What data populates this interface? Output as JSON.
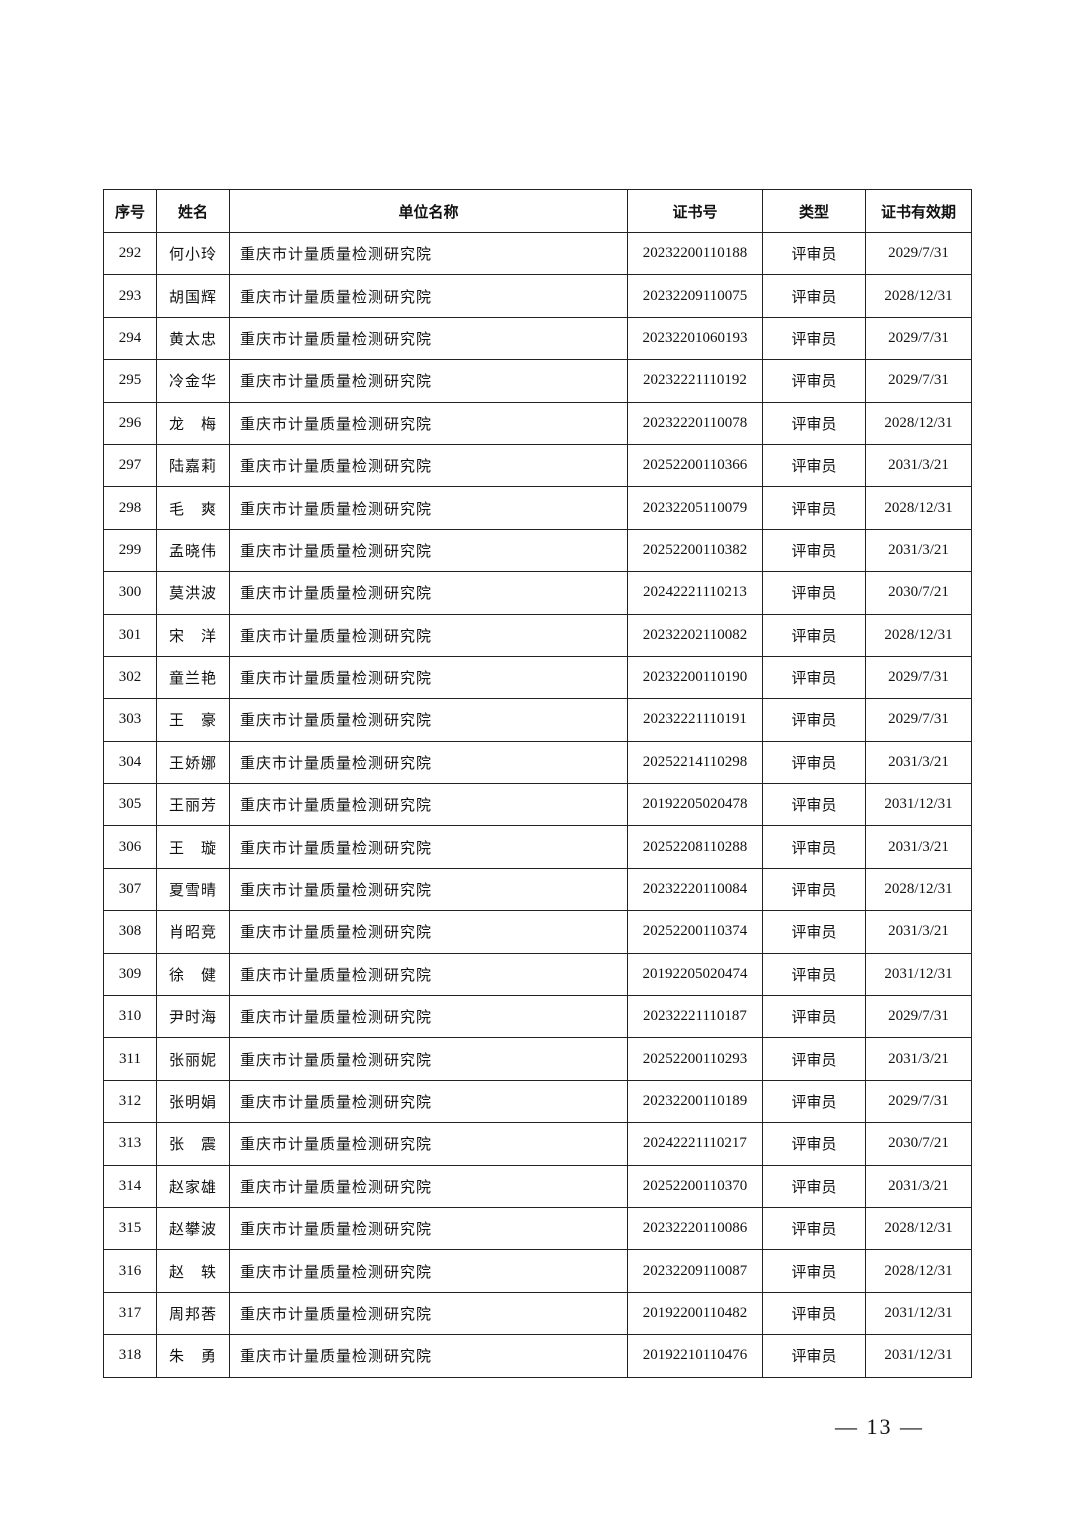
{
  "table": {
    "headers": [
      "序号",
      "姓名",
      "单位名称",
      "证书号",
      "类型",
      "证书有效期"
    ],
    "rows": [
      [
        "292",
        "何小玲",
        "重庆市计量质量检测研究院",
        "20232200110188",
        "评审员",
        "2029/7/31"
      ],
      [
        "293",
        "胡国辉",
        "重庆市计量质量检测研究院",
        "20232209110075",
        "评审员",
        "2028/12/31"
      ],
      [
        "294",
        "黄太忠",
        "重庆市计量质量检测研究院",
        "20232201060193",
        "评审员",
        "2029/7/31"
      ],
      [
        "295",
        "冷金华",
        "重庆市计量质量检测研究院",
        "20232221110192",
        "评审员",
        "2029/7/31"
      ],
      [
        "296",
        "龙　梅",
        "重庆市计量质量检测研究院",
        "20232220110078",
        "评审员",
        "2028/12/31"
      ],
      [
        "297",
        "陆嘉莉",
        "重庆市计量质量检测研究院",
        "20252200110366",
        "评审员",
        "2031/3/21"
      ],
      [
        "298",
        "毛　爽",
        "重庆市计量质量检测研究院",
        "20232205110079",
        "评审员",
        "2028/12/31"
      ],
      [
        "299",
        "孟晓伟",
        "重庆市计量质量检测研究院",
        "20252200110382",
        "评审员",
        "2031/3/21"
      ],
      [
        "300",
        "莫洪波",
        "重庆市计量质量检测研究院",
        "20242221110213",
        "评审员",
        "2030/7/21"
      ],
      [
        "301",
        "宋　洋",
        "重庆市计量质量检测研究院",
        "20232202110082",
        "评审员",
        "2028/12/31"
      ],
      [
        "302",
        "童兰艳",
        "重庆市计量质量检测研究院",
        "20232200110190",
        "评审员",
        "2029/7/31"
      ],
      [
        "303",
        "王　豪",
        "重庆市计量质量检测研究院",
        "20232221110191",
        "评审员",
        "2029/7/31"
      ],
      [
        "304",
        "王娇娜",
        "重庆市计量质量检测研究院",
        "20252214110298",
        "评审员",
        "2031/3/21"
      ],
      [
        "305",
        "王丽芳",
        "重庆市计量质量检测研究院",
        "20192205020478",
        "评审员",
        "2031/12/31"
      ],
      [
        "306",
        "王　璇",
        "重庆市计量质量检测研究院",
        "20252208110288",
        "评审员",
        "2031/3/21"
      ],
      [
        "307",
        "夏雪晴",
        "重庆市计量质量检测研究院",
        "20232220110084",
        "评审员",
        "2028/12/31"
      ],
      [
        "308",
        "肖昭竞",
        "重庆市计量质量检测研究院",
        "20252200110374",
        "评审员",
        "2031/3/21"
      ],
      [
        "309",
        "徐　健",
        "重庆市计量质量检测研究院",
        "20192205020474",
        "评审员",
        "2031/12/31"
      ],
      [
        "310",
        "尹时海",
        "重庆市计量质量检测研究院",
        "20232221110187",
        "评审员",
        "2029/7/31"
      ],
      [
        "311",
        "张丽妮",
        "重庆市计量质量检测研究院",
        "20252200110293",
        "评审员",
        "2031/3/21"
      ],
      [
        "312",
        "张明娟",
        "重庆市计量质量检测研究院",
        "20232200110189",
        "评审员",
        "2029/7/31"
      ],
      [
        "313",
        "张　震",
        "重庆市计量质量检测研究院",
        "20242221110217",
        "评审员",
        "2030/7/21"
      ],
      [
        "314",
        "赵家雄",
        "重庆市计量质量检测研究院",
        "20252200110370",
        "评审员",
        "2031/3/21"
      ],
      [
        "315",
        "赵攀波",
        "重庆市计量质量检测研究院",
        "20232220110086",
        "评审员",
        "2028/12/31"
      ],
      [
        "316",
        "赵　轶",
        "重庆市计量质量检测研究院",
        "20232209110087",
        "评审员",
        "2028/12/31"
      ],
      [
        "317",
        "周邦莕",
        "重庆市计量质量检测研究院",
        "20192200110482",
        "评审员",
        "2031/12/31"
      ],
      [
        "318",
        "朱　勇",
        "重庆市计量质量检测研究院",
        "20192210110476",
        "评审员",
        "2031/12/31"
      ]
    ]
  },
  "footer": {
    "page_number": "— 13 —"
  }
}
